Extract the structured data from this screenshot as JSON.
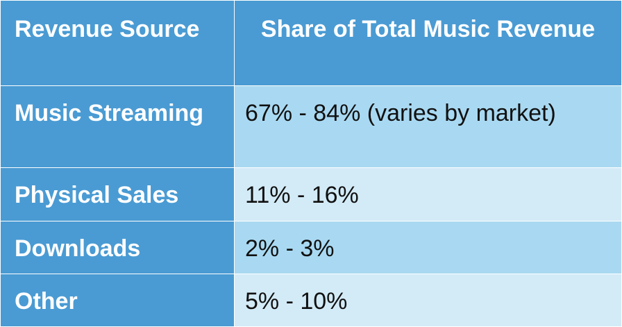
{
  "table": {
    "headers": [
      "Revenue Source",
      "Share of Total Music Revenue"
    ],
    "rows": [
      {
        "source": "Music Streaming",
        "share": "67% - 84% (varies by market)"
      },
      {
        "source": "Physical Sales",
        "share": "11% - 16%"
      },
      {
        "source": "Downloads",
        "share": "2% - 3%"
      },
      {
        "source": "Other",
        "share": "5% - 10%"
      }
    ]
  },
  "colors": {
    "header": "#4a9bd3",
    "row_dark": "#a9d9f2",
    "row_light": "#d3ebf7"
  }
}
